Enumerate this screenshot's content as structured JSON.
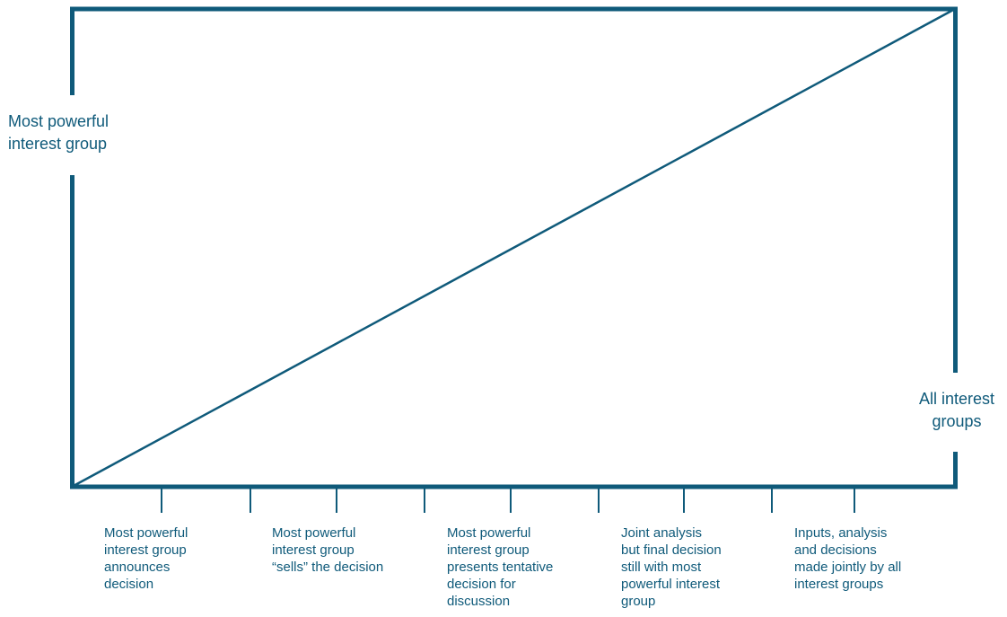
{
  "diagram": {
    "color": "#0f5a7a",
    "left_label": [
      "Most powerful",
      "interest group"
    ],
    "right_label": [
      "All interest",
      "groups"
    ],
    "stages": [
      {
        "lines": [
          "Most powerful",
          "interest group",
          "announces",
          "decision"
        ]
      },
      {
        "lines": [
          "Most powerful",
          "interest group",
          "“sells” the decision"
        ]
      },
      {
        "lines": [
          "Most powerful",
          "interest group",
          "presents tentative",
          "decision for",
          "discussion"
        ]
      },
      {
        "lines": [
          "Joint analysis",
          "but final decision",
          "still with most",
          "powerful interest",
          "group"
        ]
      },
      {
        "lines": [
          "Inputs, analysis",
          "and decisions",
          "made jointly by all",
          "interest groups"
        ]
      }
    ]
  }
}
